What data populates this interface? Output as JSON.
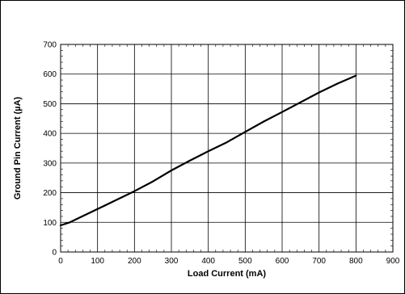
{
  "chart_data": {
    "type": "line",
    "xlabel": "Load Current (mA)",
    "ylabel": "Ground Pin Current (µA)",
    "xlim": [
      0,
      900
    ],
    "ylim": [
      0,
      700
    ],
    "x_ticks": [
      0,
      100,
      200,
      300,
      400,
      500,
      600,
      700,
      800,
      900
    ],
    "y_ticks": [
      0,
      100,
      200,
      300,
      400,
      500,
      600,
      700
    ],
    "grid": true,
    "series": [
      {
        "color": "#000000",
        "x": [
          0,
          25,
          50,
          100,
          150,
          200,
          250,
          300,
          350,
          400,
          450,
          500,
          550,
          600,
          650,
          700,
          750,
          800
        ],
        "y": [
          90,
          100,
          115,
          145,
          175,
          205,
          238,
          275,
          308,
          340,
          370,
          405,
          440,
          472,
          505,
          538,
          568,
          595
        ]
      }
    ]
  }
}
